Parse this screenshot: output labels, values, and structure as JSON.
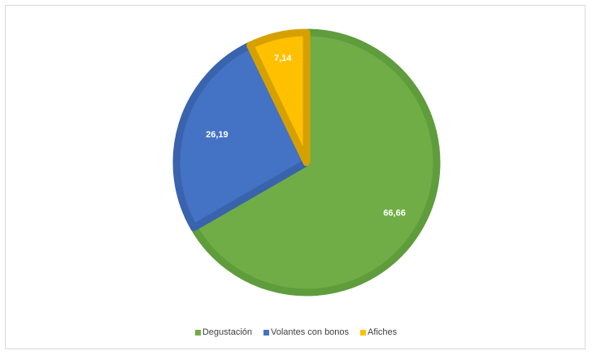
{
  "chart_data": {
    "type": "pie",
    "title": "",
    "slices": [
      {
        "label": "Degustación",
        "value": 66.66,
        "display": "66,66",
        "color": "#70ad47",
        "edge": "#5f9c3c"
      },
      {
        "label": "Volantes con bonos",
        "value": 26.19,
        "display": "26,19",
        "color": "#4472c4",
        "edge": "#3a63ad"
      },
      {
        "label": "Afiches",
        "value": 7.14,
        "display": "7,14",
        "color": "#ffc000",
        "edge": "#d6a100"
      }
    ],
    "legend_position": "bottom",
    "data_label_color": "#ffffff"
  }
}
